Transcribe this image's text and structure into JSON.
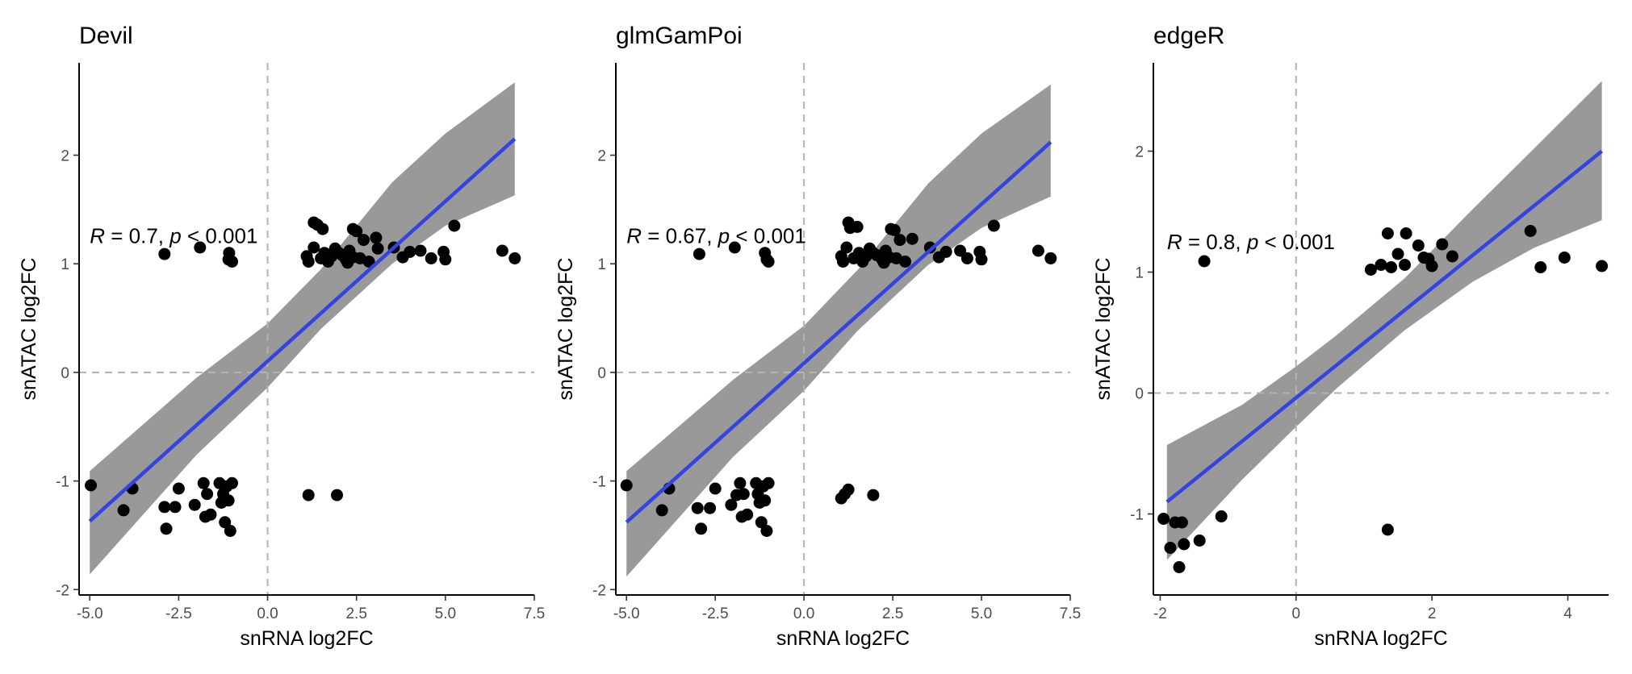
{
  "colors": {
    "points": "#000000",
    "fit_line": "#3344e0",
    "ribbon": "#999999",
    "ref_lines": "#b3b3b3",
    "tick_text": "#4d4d4d"
  },
  "chart_data": [
    {
      "type": "scatter",
      "title": "Devil",
      "xlabel": "snRNA log2FC",
      "ylabel": "snATAC log2FC",
      "xlim": [
        -5.3,
        7.5
      ],
      "ylim": [
        -2.05,
        2.85
      ],
      "xticks": [
        -5.0,
        -2.5,
        0.0,
        2.5,
        5.0,
        7.5
      ],
      "xtick_labels": [
        "-5.0",
        "-2.5",
        "0.0",
        "2.5",
        "5.0",
        "7.5"
      ],
      "yticks": [
        -2,
        -1,
        0,
        1,
        2
      ],
      "ytick_labels": [
        "-2",
        "-1",
        "0",
        "1",
        "2"
      ],
      "ref_lines": {
        "x": 0,
        "y": 0
      },
      "annotation": {
        "r_prefix": "R",
        "r_value": " = 0.7, ",
        "p_prefix": "p",
        "p_value": " < 0.001",
        "x": -5.0,
        "y": 1.19
      },
      "fit": {
        "x0": -5.0,
        "y0": -1.37,
        "x1": 6.95,
        "y1": 2.15
      },
      "ribbon": [
        {
          "x": -5.0,
          "lo": -1.86,
          "hi": -0.91
        },
        {
          "x": -2.0,
          "lo": -0.76,
          "hi": -0.05
        },
        {
          "x": 0.0,
          "lo": -0.14,
          "hi": 0.45
        },
        {
          "x": 1.5,
          "lo": 0.4,
          "hi": 0.95
        },
        {
          "x": 3.5,
          "lo": 1.0,
          "hi": 1.75
        },
        {
          "x": 5.0,
          "lo": 1.35,
          "hi": 2.2
        },
        {
          "x": 6.95,
          "lo": 1.63,
          "hi": 2.67
        }
      ],
      "points": [
        {
          "x": -4.97,
          "y": -1.04
        },
        {
          "x": -4.05,
          "y": -1.27
        },
        {
          "x": -3.8,
          "y": -1.07
        },
        {
          "x": -2.9,
          "y": -1.24
        },
        {
          "x": -2.85,
          "y": -1.44
        },
        {
          "x": -2.6,
          "y": -1.24
        },
        {
          "x": -2.5,
          "y": -1.07
        },
        {
          "x": -2.05,
          "y": -1.22
        },
        {
          "x": -1.8,
          "y": -1.02
        },
        {
          "x": -1.75,
          "y": -1.33
        },
        {
          "x": -1.7,
          "y": -1.12
        },
        {
          "x": -1.6,
          "y": -1.31
        },
        {
          "x": -1.35,
          "y": -1.02
        },
        {
          "x": -1.3,
          "y": -1.2
        },
        {
          "x": -1.25,
          "y": -1.12
        },
        {
          "x": -1.2,
          "y": -1.38
        },
        {
          "x": -1.15,
          "y": -1.05
        },
        {
          "x": -1.1,
          "y": -1.18
        },
        {
          "x": -1.05,
          "y": -1.46
        },
        {
          "x": -1.0,
          "y": -1.02
        },
        {
          "x": 1.15,
          "y": -1.13
        },
        {
          "x": 1.95,
          "y": -1.13
        },
        {
          "x": -2.9,
          "y": 1.09
        },
        {
          "x": -1.9,
          "y": 1.15
        },
        {
          "x": -1.1,
          "y": 1.04
        },
        {
          "x": -1.08,
          "y": 1.1
        },
        {
          "x": -1.0,
          "y": 1.02
        },
        {
          "x": 1.1,
          "y": 1.07
        },
        {
          "x": 1.15,
          "y": 1.02
        },
        {
          "x": 1.3,
          "y": 1.15
        },
        {
          "x": 1.3,
          "y": 1.38
        },
        {
          "x": 1.4,
          "y": 1.36
        },
        {
          "x": 1.5,
          "y": 1.05
        },
        {
          "x": 1.55,
          "y": 1.32
        },
        {
          "x": 1.6,
          "y": 1.1
        },
        {
          "x": 1.7,
          "y": 1.02
        },
        {
          "x": 1.8,
          "y": 1.07
        },
        {
          "x": 1.9,
          "y": 1.14
        },
        {
          "x": 2.0,
          "y": 1.1
        },
        {
          "x": 2.1,
          "y": 1.08
        },
        {
          "x": 2.2,
          "y": 1.04
        },
        {
          "x": 2.25,
          "y": 1.01
        },
        {
          "x": 2.3,
          "y": 1.12
        },
        {
          "x": 2.4,
          "y": 1.06
        },
        {
          "x": 2.4,
          "y": 1.32
        },
        {
          "x": 2.5,
          "y": 1.3
        },
        {
          "x": 2.6,
          "y": 1.05
        },
        {
          "x": 2.7,
          "y": 1.22
        },
        {
          "x": 2.85,
          "y": 1.02
        },
        {
          "x": 3.05,
          "y": 1.24
        },
        {
          "x": 3.1,
          "y": 1.14
        },
        {
          "x": 3.55,
          "y": 1.15
        },
        {
          "x": 3.8,
          "y": 1.06
        },
        {
          "x": 4.0,
          "y": 1.11
        },
        {
          "x": 4.3,
          "y": 1.12
        },
        {
          "x": 4.6,
          "y": 1.05
        },
        {
          "x": 4.95,
          "y": 1.11
        },
        {
          "x": 5.0,
          "y": 1.04
        },
        {
          "x": 5.25,
          "y": 1.35
        },
        {
          "x": 6.6,
          "y": 1.12
        },
        {
          "x": 6.95,
          "y": 1.05
        }
      ]
    },
    {
      "type": "scatter",
      "title": "glmGamPoi",
      "xlabel": "snRNA log2FC",
      "ylabel": "snATAC log2FC",
      "xlim": [
        -5.3,
        7.5
      ],
      "ylim": [
        -2.05,
        2.85
      ],
      "xticks": [
        -5.0,
        -2.5,
        0.0,
        2.5,
        5.0,
        7.5
      ],
      "xtick_labels": [
        "-5.0",
        "-2.5",
        "0.0",
        "2.5",
        "5.0",
        "7.5"
      ],
      "yticks": [
        -2,
        -1,
        0,
        1,
        2
      ],
      "ytick_labels": [
        "-2",
        "-1",
        "0",
        "1",
        "2"
      ],
      "ref_lines": {
        "x": 0,
        "y": 0
      },
      "annotation": {
        "r_prefix": "R",
        "r_value": " = 0.67, ",
        "p_prefix": "p",
        "p_value": " < 0.001",
        "x": -5.0,
        "y": 1.19
      },
      "fit": {
        "x0": -5.0,
        "y0": -1.38,
        "x1": 6.95,
        "y1": 2.12
      },
      "ribbon": [
        {
          "x": -5.0,
          "lo": -1.88,
          "hi": -0.91
        },
        {
          "x": -2.0,
          "lo": -0.78,
          "hi": -0.07
        },
        {
          "x": 0.0,
          "lo": -0.17,
          "hi": 0.43
        },
        {
          "x": 1.5,
          "lo": 0.38,
          "hi": 0.94
        },
        {
          "x": 3.5,
          "lo": 0.99,
          "hi": 1.74
        },
        {
          "x": 5.0,
          "lo": 1.33,
          "hi": 2.2
        },
        {
          "x": 6.95,
          "lo": 1.62,
          "hi": 2.65
        }
      ],
      "points": [
        {
          "x": -5.0,
          "y": -1.04
        },
        {
          "x": -4.0,
          "y": -1.27
        },
        {
          "x": -3.8,
          "y": -1.07
        },
        {
          "x": -3.0,
          "y": -1.25
        },
        {
          "x": -2.9,
          "y": -1.44
        },
        {
          "x": -2.65,
          "y": -1.25
        },
        {
          "x": -2.5,
          "y": -1.07
        },
        {
          "x": -2.05,
          "y": -1.22
        },
        {
          "x": -1.9,
          "y": -1.13
        },
        {
          "x": -1.8,
          "y": -1.02
        },
        {
          "x": -1.75,
          "y": -1.33
        },
        {
          "x": -1.7,
          "y": -1.12
        },
        {
          "x": -1.6,
          "y": -1.31
        },
        {
          "x": -1.35,
          "y": -1.02
        },
        {
          "x": -1.3,
          "y": -1.12
        },
        {
          "x": -1.25,
          "y": -1.2
        },
        {
          "x": -1.2,
          "y": -1.38
        },
        {
          "x": -1.15,
          "y": -1.05
        },
        {
          "x": -1.1,
          "y": -1.18
        },
        {
          "x": -1.05,
          "y": -1.46
        },
        {
          "x": -1.0,
          "y": -1.02
        },
        {
          "x": 1.05,
          "y": -1.16
        },
        {
          "x": 1.15,
          "y": -1.12
        },
        {
          "x": 1.25,
          "y": -1.08
        },
        {
          "x": 1.95,
          "y": -1.13
        },
        {
          "x": -2.95,
          "y": 1.09
        },
        {
          "x": -1.95,
          "y": 1.15
        },
        {
          "x": -1.1,
          "y": 1.1
        },
        {
          "x": -1.05,
          "y": 1.04
        },
        {
          "x": -1.0,
          "y": 1.02
        },
        {
          "x": 1.05,
          "y": 1.07
        },
        {
          "x": 1.1,
          "y": 1.02
        },
        {
          "x": 1.2,
          "y": 1.15
        },
        {
          "x": 1.25,
          "y": 1.38
        },
        {
          "x": 1.3,
          "y": 1.33
        },
        {
          "x": 1.4,
          "y": 1.05
        },
        {
          "x": 1.5,
          "y": 1.34
        },
        {
          "x": 1.55,
          "y": 1.1
        },
        {
          "x": 1.65,
          "y": 1.02
        },
        {
          "x": 1.75,
          "y": 1.07
        },
        {
          "x": 1.85,
          "y": 1.14
        },
        {
          "x": 1.95,
          "y": 1.1
        },
        {
          "x": 2.05,
          "y": 1.08
        },
        {
          "x": 2.2,
          "y": 1.04
        },
        {
          "x": 2.25,
          "y": 1.01
        },
        {
          "x": 2.3,
          "y": 1.12
        },
        {
          "x": 2.4,
          "y": 1.06
        },
        {
          "x": 2.45,
          "y": 1.32
        },
        {
          "x": 2.55,
          "y": 1.31
        },
        {
          "x": 2.6,
          "y": 1.05
        },
        {
          "x": 2.7,
          "y": 1.22
        },
        {
          "x": 2.85,
          "y": 1.02
        },
        {
          "x": 3.05,
          "y": 1.23
        },
        {
          "x": 3.55,
          "y": 1.15
        },
        {
          "x": 3.8,
          "y": 1.06
        },
        {
          "x": 4.0,
          "y": 1.11
        },
        {
          "x": 4.4,
          "y": 1.12
        },
        {
          "x": 4.6,
          "y": 1.05
        },
        {
          "x": 4.95,
          "y": 1.11
        },
        {
          "x": 5.0,
          "y": 1.04
        },
        {
          "x": 5.35,
          "y": 1.35
        },
        {
          "x": 6.6,
          "y": 1.12
        },
        {
          "x": 6.95,
          "y": 1.05
        }
      ]
    },
    {
      "type": "scatter",
      "title": "edgeR",
      "xlabel": "snRNA log2FC",
      "ylabel": "snATAC log2FC",
      "xlim": [
        -2.1,
        4.6
      ],
      "ylim": [
        -1.67,
        2.73
      ],
      "xticks": [
        -2,
        0,
        2,
        4
      ],
      "xtick_labels": [
        "-2",
        "0",
        "2",
        "4"
      ],
      "yticks": [
        -1,
        0,
        1,
        2
      ],
      "ytick_labels": [
        "-1",
        "0",
        "1",
        "2"
      ],
      "ref_lines": {
        "x": 0,
        "y": 0
      },
      "annotation": {
        "r_prefix": "R",
        "r_value": " = 0.8, ",
        "p_prefix": "p",
        "p_value": " < 0.001",
        "x": -1.9,
        "y": 1.19
      },
      "fit": {
        "x0": -1.9,
        "y0": -0.9,
        "x1": 4.5,
        "y1": 2.0
      },
      "ribbon": [
        {
          "x": -1.9,
          "lo": -1.38,
          "hi": -0.43
        },
        {
          "x": -0.8,
          "lo": -0.72,
          "hi": -0.1
        },
        {
          "x": 0.0,
          "lo": -0.28,
          "hi": 0.22
        },
        {
          "x": 0.6,
          "lo": 0.04,
          "hi": 0.48
        },
        {
          "x": 1.6,
          "lo": 0.52,
          "hi": 0.95
        },
        {
          "x": 2.6,
          "lo": 0.92,
          "hi": 1.52
        },
        {
          "x": 3.5,
          "lo": 1.2,
          "hi": 2.02
        },
        {
          "x": 4.5,
          "lo": 1.43,
          "hi": 2.58
        }
      ],
      "points": [
        {
          "x": -1.95,
          "y": -1.04
        },
        {
          "x": -1.85,
          "y": -1.28
        },
        {
          "x": -1.78,
          "y": -1.07
        },
        {
          "x": -1.72,
          "y": -1.44
        },
        {
          "x": -1.68,
          "y": -1.07
        },
        {
          "x": -1.65,
          "y": -1.25
        },
        {
          "x": -1.42,
          "y": -1.22
        },
        {
          "x": -1.1,
          "y": -1.02
        },
        {
          "x": 1.35,
          "y": -1.13
        },
        {
          "x": -1.35,
          "y": 1.09
        },
        {
          "x": 1.1,
          "y": 1.02
        },
        {
          "x": 1.25,
          "y": 1.06
        },
        {
          "x": 1.35,
          "y": 1.32
        },
        {
          "x": 1.4,
          "y": 1.04
        },
        {
          "x": 1.5,
          "y": 1.15
        },
        {
          "x": 1.6,
          "y": 1.06
        },
        {
          "x": 1.62,
          "y": 1.32
        },
        {
          "x": 1.8,
          "y": 1.22
        },
        {
          "x": 1.88,
          "y": 1.12
        },
        {
          "x": 1.95,
          "y": 1.11
        },
        {
          "x": 2.0,
          "y": 1.05
        },
        {
          "x": 2.15,
          "y": 1.23
        },
        {
          "x": 2.3,
          "y": 1.13
        },
        {
          "x": 3.45,
          "y": 1.34
        },
        {
          "x": 3.6,
          "y": 1.04
        },
        {
          "x": 3.95,
          "y": 1.12
        },
        {
          "x": 4.5,
          "y": 1.05
        }
      ]
    }
  ]
}
